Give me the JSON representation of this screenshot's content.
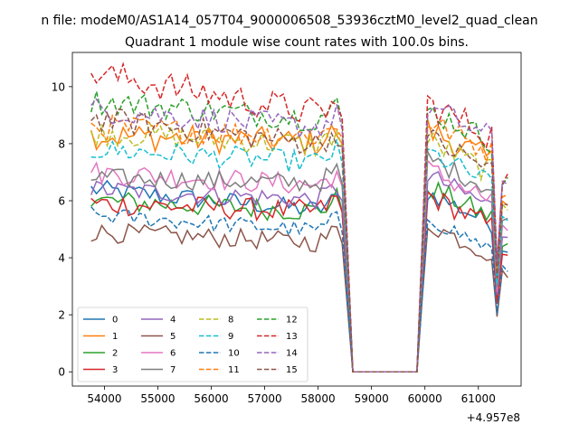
{
  "figure": {
    "suptitle": "n file: modeM0/AS1A14_057T04_9000006508_53936cztM0_level2_quad_clean",
    "title": "Quadrant 1 module wise count rates with 100.0s bins.",
    "offset_text": "+4.957e8"
  },
  "chart_data": {
    "type": "line",
    "title": "Quadrant 1 module wise count rates with 100.0s bins.",
    "xlabel": "",
    "ylabel": "",
    "x_offset": 495700000,
    "xlim": [
      53400,
      61800
    ],
    "ylim": [
      -0.5,
      11.2
    ],
    "x_ticks": [
      54000,
      55000,
      56000,
      57000,
      58000,
      59000,
      60000,
      61000
    ],
    "x_tick_labels": [
      "54000",
      "55000",
      "56000",
      "57000",
      "58000",
      "59000",
      "60000",
      "61000"
    ],
    "y_ticks": [
      0,
      2,
      4,
      6,
      8,
      10
    ],
    "y_tick_labels": [
      "0",
      "2",
      "4",
      "6",
      "8",
      "10"
    ],
    "grid": false,
    "legend_location": "lower-left",
    "legend_columns": 4,
    "series": [
      {
        "name": "0",
        "color": "#1f77b4",
        "dash": "solid",
        "level_start": 6.4,
        "level_end": 5.6,
        "amp": 0.35,
        "post_level": 5.4
      },
      {
        "name": "1",
        "color": "#ff7f0e",
        "dash": "solid",
        "level_start": 8.3,
        "level_end": 8.0,
        "amp": 0.5,
        "post_level": 7.6
      },
      {
        "name": "2",
        "color": "#2ca02c",
        "dash": "solid",
        "level_start": 6.0,
        "level_end": 5.6,
        "amp": 0.4,
        "post_level": 5.6
      },
      {
        "name": "3",
        "color": "#d62728",
        "dash": "solid",
        "level_start": 5.9,
        "level_end": 5.6,
        "amp": 0.4,
        "post_level": 5.3
      },
      {
        "name": "4",
        "color": "#9467bd",
        "dash": "solid",
        "level_start": 6.4,
        "level_end": 6.0,
        "amp": 0.35,
        "post_level": 6.0
      },
      {
        "name": "5",
        "color": "#8c564b",
        "dash": "solid",
        "level_start": 4.9,
        "level_end": 4.5,
        "amp": 0.35,
        "post_level": 4.3
      },
      {
        "name": "6",
        "color": "#e377c2",
        "dash": "solid",
        "level_start": 7.0,
        "level_end": 6.5,
        "amp": 0.4,
        "post_level": 6.2
      },
      {
        "name": "7",
        "color": "#7f7f7f",
        "dash": "solid",
        "level_start": 6.8,
        "level_end": 6.6,
        "amp": 0.35,
        "post_level": 6.6
      },
      {
        "name": "8",
        "color": "#bcbd22",
        "dash": "dashed",
        "level_start": 8.4,
        "level_end": 7.9,
        "amp": 0.45,
        "post_level": 7.2
      },
      {
        "name": "9",
        "color": "#17becf",
        "dash": "dashed",
        "level_start": 7.8,
        "level_end": 7.3,
        "amp": 0.4,
        "post_level": 6.8
      },
      {
        "name": "10",
        "color": "#1f77b4",
        "dash": "dashed",
        "level_start": 5.5,
        "level_end": 4.9,
        "amp": 0.3,
        "post_level": 4.5
      },
      {
        "name": "11",
        "color": "#ff7f0e",
        "dash": "dashed",
        "level_start": 8.6,
        "level_end": 8.2,
        "amp": 0.45,
        "post_level": 7.9
      },
      {
        "name": "12",
        "color": "#2ca02c",
        "dash": "dashed",
        "level_start": 9.5,
        "level_end": 8.8,
        "amp": 0.45,
        "post_level": 8.3
      },
      {
        "name": "13",
        "color": "#d62728",
        "dash": "dashed",
        "level_start": 10.5,
        "level_end": 8.9,
        "amp": 0.55,
        "post_level": 8.5
      },
      {
        "name": "14",
        "color": "#9467bd",
        "dash": "dashed",
        "level_start": 9.2,
        "level_end": 8.5,
        "amp": 0.45,
        "post_level": 8.4
      },
      {
        "name": "15",
        "color": "#8c564b",
        "dash": "dashed",
        "level_start": 8.9,
        "level_end": 7.9,
        "amp": 0.45,
        "post_level": 7.3
      }
    ]
  }
}
